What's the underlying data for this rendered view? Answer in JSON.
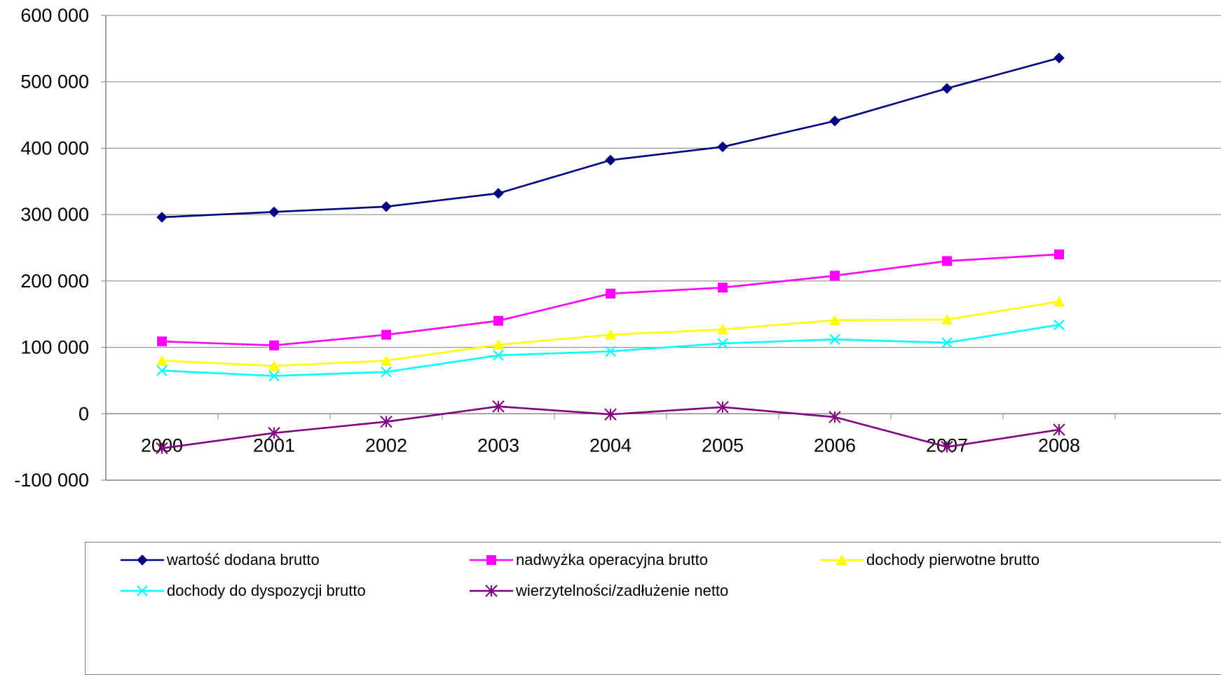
{
  "chart_data": {
    "type": "line",
    "title": "",
    "xlabel": "",
    "ylabel": "",
    "categories": [
      "2000",
      "2001",
      "2002",
      "2003",
      "2004",
      "2005",
      "2006",
      "2007",
      "2008"
    ],
    "ylim": [
      -100000,
      600000
    ],
    "yticks": [
      -100000,
      0,
      100000,
      200000,
      300000,
      400000,
      500000,
      600000
    ],
    "ytick_labels": [
      "-100 000",
      "0",
      "100 000",
      "200 000",
      "300 000",
      "400 000",
      "500 000",
      "600 000"
    ],
    "grid": "horizontal",
    "legend_position": "bottom",
    "series": [
      {
        "name": "wartość dodana brutto",
        "color": "#000080",
        "marker": "diamond",
        "values": [
          296000,
          304000,
          312000,
          332000,
          382000,
          402000,
          441000,
          490000,
          536000
        ]
      },
      {
        "name": "nadwyżka operacyjna brutto",
        "color": "#ff00ff",
        "marker": "square",
        "values": [
          109000,
          103000,
          119000,
          140000,
          181000,
          190000,
          208000,
          230000,
          240000
        ]
      },
      {
        "name": "dochody pierwotne brutto",
        "color": "#ffff00",
        "marker": "triangle",
        "values": [
          80000,
          72000,
          80000,
          104000,
          119000,
          127000,
          141000,
          142000,
          169000
        ]
      },
      {
        "name": "dochody do dyspozycji brutto",
        "color": "#00ffff",
        "marker": "x",
        "values": [
          65000,
          57000,
          63000,
          88000,
          94000,
          106000,
          112000,
          107000,
          134000
        ]
      },
      {
        "name": "wierzytelności/zadłużenie netto",
        "color": "#800080",
        "marker": "star",
        "values": [
          -52000,
          -29000,
          -12000,
          11000,
          -1000,
          10000,
          -5000,
          -50000,
          -24000
        ]
      }
    ]
  }
}
